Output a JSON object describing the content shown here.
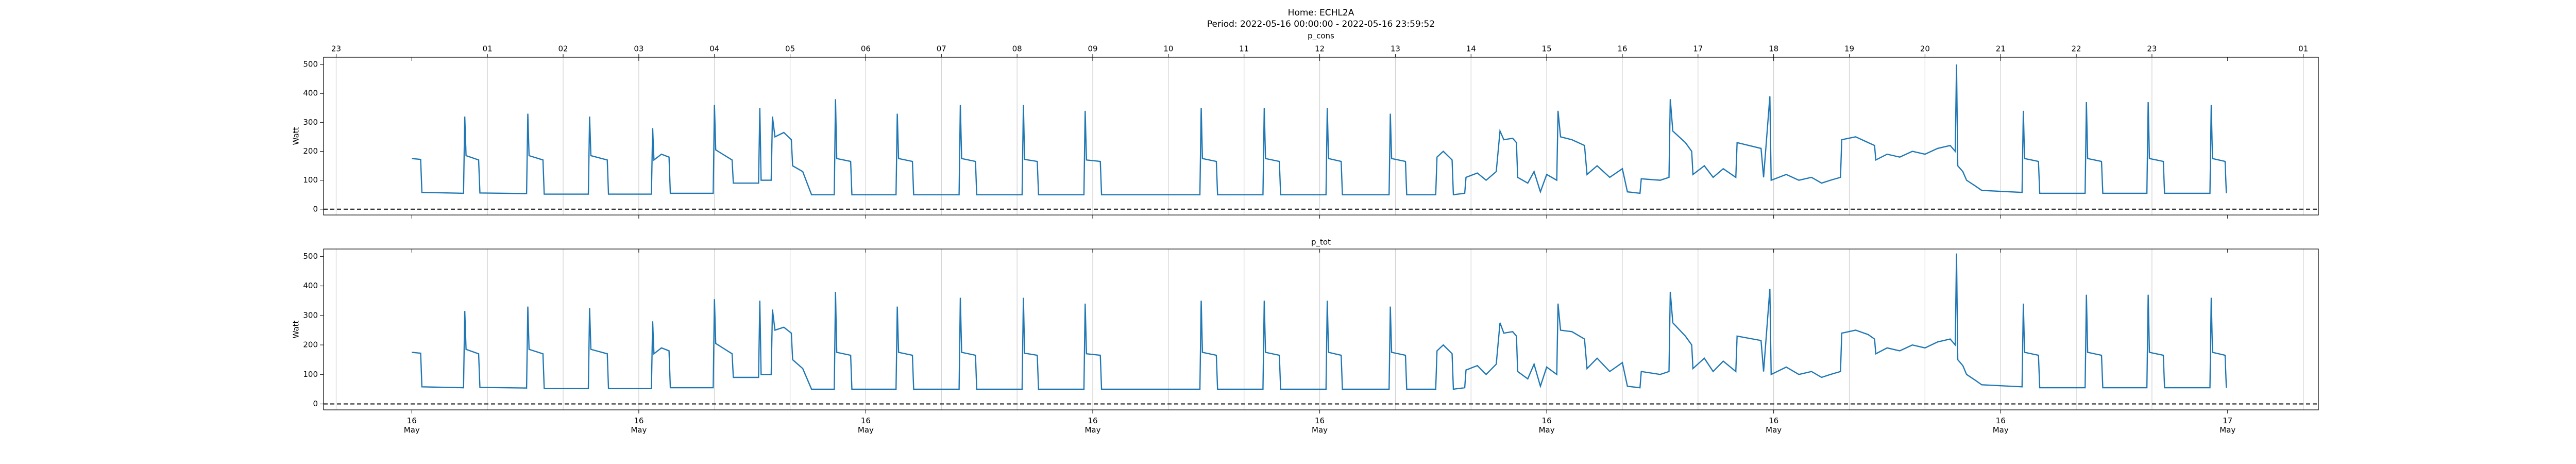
{
  "title": "Home: ECHL2A",
  "subtitle": "Period: 2022-05-16 00:00:00 - 2022-05-16 23:59:52",
  "chart_data": [
    {
      "type": "line",
      "title": "p_cons",
      "ylabel": "Watt",
      "xlim": [
        "2022-05-15 22:50",
        "2022-05-17 01:12"
      ],
      "ylim": [
        -20,
        525
      ],
      "yticks": [
        0,
        100,
        200,
        300,
        400,
        500
      ],
      "hline": 0,
      "grid": true,
      "x2ticks": [
        {
          "value": "2022-05-15 23:00",
          "label": "23"
        },
        {
          "value": "2022-05-16 01:00",
          "label": "01"
        },
        {
          "value": "2022-05-16 02:00",
          "label": "02"
        },
        {
          "value": "2022-05-16 03:00",
          "label": "03"
        },
        {
          "value": "2022-05-16 04:00",
          "label": "04"
        },
        {
          "value": "2022-05-16 05:00",
          "label": "05"
        },
        {
          "value": "2022-05-16 06:00",
          "label": "06"
        },
        {
          "value": "2022-05-16 07:00",
          "label": "07"
        },
        {
          "value": "2022-05-16 08:00",
          "label": "08"
        },
        {
          "value": "2022-05-16 09:00",
          "label": "09"
        },
        {
          "value": "2022-05-16 10:00",
          "label": "10"
        },
        {
          "value": "2022-05-16 11:00",
          "label": "11"
        },
        {
          "value": "2022-05-16 12:00",
          "label": "12"
        },
        {
          "value": "2022-05-16 13:00",
          "label": "13"
        },
        {
          "value": "2022-05-16 14:00",
          "label": "14"
        },
        {
          "value": "2022-05-16 15:00",
          "label": "15"
        },
        {
          "value": "2022-05-16 16:00",
          "label": "16"
        },
        {
          "value": "2022-05-16 17:00",
          "label": "17"
        },
        {
          "value": "2022-05-16 18:00",
          "label": "18"
        },
        {
          "value": "2022-05-16 19:00",
          "label": "19"
        },
        {
          "value": "2022-05-16 20:00",
          "label": "20"
        },
        {
          "value": "2022-05-16 21:00",
          "label": "21"
        },
        {
          "value": "2022-05-16 22:00",
          "label": "22"
        },
        {
          "value": "2022-05-16 23:00",
          "label": "23"
        },
        {
          "value": "2022-05-17 01:00",
          "label": "01"
        }
      ],
      "color": "#1f77b4",
      "x": [
        "2022-05-16 00:00",
        "2022-05-16 00:07",
        "2022-05-16 00:08",
        "2022-05-16 00:41",
        "2022-05-16 00:42",
        "2022-05-16 00:43",
        "2022-05-16 00:53",
        "2022-05-16 00:54",
        "2022-05-16 01:31",
        "2022-05-16 01:32",
        "2022-05-16 01:33",
        "2022-05-16 01:44",
        "2022-05-16 01:45",
        "2022-05-16 02:20",
        "2022-05-16 02:21",
        "2022-05-16 02:22",
        "2022-05-16 02:35",
        "2022-05-16 02:36",
        "2022-05-16 03:10",
        "2022-05-16 03:11",
        "2022-05-16 03:12",
        "2022-05-16 03:18",
        "2022-05-16 03:24",
        "2022-05-16 03:25",
        "2022-05-16 03:59",
        "2022-05-16 04:00",
        "2022-05-16 04:01",
        "2022-05-16 04:14",
        "2022-05-16 04:15",
        "2022-05-16 04:35",
        "2022-05-16 04:36",
        "2022-05-16 04:37",
        "2022-05-16 04:45",
        "2022-05-16 04:46",
        "2022-05-16 04:48",
        "2022-05-16 04:55",
        "2022-05-16 05:01",
        "2022-05-16 05:02",
        "2022-05-16 05:10",
        "2022-05-16 05:17",
        "2022-05-16 05:35",
        "2022-05-16 05:36",
        "2022-05-16 05:37",
        "2022-05-16 05:48",
        "2022-05-16 05:49",
        "2022-05-16 06:24",
        "2022-05-16 06:25",
        "2022-05-16 06:26",
        "2022-05-16 06:37",
        "2022-05-16 06:38",
        "2022-05-16 07:14",
        "2022-05-16 07:15",
        "2022-05-16 07:16",
        "2022-05-16 07:27",
        "2022-05-16 07:28",
        "2022-05-16 08:04",
        "2022-05-16 08:05",
        "2022-05-16 08:06",
        "2022-05-16 08:16",
        "2022-05-16 08:17",
        "2022-05-16 08:53",
        "2022-05-16 08:54",
        "2022-05-16 08:55",
        "2022-05-16 09:06",
        "2022-05-16 09:07",
        "2022-05-16 10:25",
        "2022-05-16 10:26",
        "2022-05-16 10:27",
        "2022-05-16 10:38",
        "2022-05-16 10:39",
        "2022-05-16 11:15",
        "2022-05-16 11:16",
        "2022-05-16 11:17",
        "2022-05-16 11:28",
        "2022-05-16 11:29",
        "2022-05-16 12:05",
        "2022-05-16 12:06",
        "2022-05-16 12:07",
        "2022-05-16 12:17",
        "2022-05-16 12:18",
        "2022-05-16 12:55",
        "2022-05-16 12:56",
        "2022-05-16 12:57",
        "2022-05-16 13:08",
        "2022-05-16 13:09",
        "2022-05-16 13:32",
        "2022-05-16 13:33",
        "2022-05-16 13:38",
        "2022-05-16 13:45",
        "2022-05-16 13:46",
        "2022-05-16 13:55",
        "2022-05-16 13:56",
        "2022-05-16 14:05",
        "2022-05-16 14:12",
        "2022-05-16 14:20",
        "2022-05-16 14:23",
        "2022-05-16 14:26",
        "2022-05-16 14:33",
        "2022-05-16 14:36",
        "2022-05-16 14:37",
        "2022-05-16 14:45",
        "2022-05-16 14:50",
        "2022-05-16 14:55",
        "2022-05-16 15:00",
        "2022-05-16 15:08",
        "2022-05-16 15:09",
        "2022-05-16 15:11",
        "2022-05-16 15:20",
        "2022-05-16 15:30",
        "2022-05-16 15:32",
        "2022-05-16 15:40",
        "2022-05-16 15:50",
        "2022-05-16 16:00",
        "2022-05-16 16:04",
        "2022-05-16 16:14",
        "2022-05-16 16:15",
        "2022-05-16 16:30",
        "2022-05-16 16:37",
        "2022-05-16 16:38",
        "2022-05-16 16:40",
        "2022-05-16 16:50",
        "2022-05-16 16:55",
        "2022-05-16 16:56",
        "2022-05-16 17:05",
        "2022-05-16 17:12",
        "2022-05-16 17:20",
        "2022-05-16 17:30",
        "2022-05-16 17:31",
        "2022-05-16 17:50",
        "2022-05-16 17:52",
        "2022-05-16 17:57",
        "2022-05-16 17:58",
        "2022-05-16 18:10",
        "2022-05-16 18:20",
        "2022-05-16 18:30",
        "2022-05-16 18:38",
        "2022-05-16 18:45",
        "2022-05-16 18:53",
        "2022-05-16 18:54",
        "2022-05-16 19:05",
        "2022-05-16 19:15",
        "2022-05-16 19:20",
        "2022-05-16 19:21",
        "2022-05-16 19:30",
        "2022-05-16 19:40",
        "2022-05-16 19:50",
        "2022-05-16 20:00",
        "2022-05-16 20:10",
        "2022-05-16 20:20",
        "2022-05-16 20:24",
        "2022-05-16 20:25",
        "2022-05-16 20:26",
        "2022-05-16 20:30",
        "2022-05-16 20:33",
        "2022-05-16 20:40",
        "2022-05-16 20:45",
        "2022-05-16 21:17",
        "2022-05-16 21:18",
        "2022-05-16 21:19",
        "2022-05-16 21:30",
        "2022-05-16 21:31",
        "2022-05-16 22:07",
        "2022-05-16 22:08",
        "2022-05-16 22:09",
        "2022-05-16 22:20",
        "2022-05-16 22:21",
        "2022-05-16 22:56",
        "2022-05-16 22:57",
        "2022-05-16 22:58",
        "2022-05-16 23:09",
        "2022-05-16 23:10",
        "2022-05-16 23:46",
        "2022-05-16 23:47",
        "2022-05-16 23:48",
        "2022-05-16 23:58",
        "2022-05-16 23:59"
      ],
      "values": [
        175,
        172,
        58,
        55,
        320,
        185,
        170,
        56,
        54,
        330,
        185,
        170,
        52,
        52,
        320,
        185,
        170,
        52,
        52,
        280,
        170,
        190,
        180,
        55,
        55,
        360,
        205,
        170,
        90,
        90,
        350,
        100,
        100,
        320,
        250,
        265,
        240,
        150,
        130,
        50,
        50,
        380,
        175,
        165,
        50,
        50,
        330,
        175,
        165,
        50,
        50,
        360,
        175,
        165,
        50,
        50,
        360,
        172,
        165,
        50,
        50,
        340,
        170,
        165,
        50,
        50,
        350,
        175,
        165,
        50,
        50,
        350,
        175,
        165,
        50,
        50,
        350,
        175,
        165,
        50,
        50,
        330,
        175,
        165,
        50,
        50,
        180,
        200,
        170,
        50,
        55,
        110,
        125,
        100,
        130,
        270,
        240,
        245,
        230,
        110,
        90,
        130,
        60,
        120,
        100,
        340,
        250,
        240,
        220,
        120,
        150,
        110,
        140,
        60,
        55,
        105,
        100,
        110,
        380,
        270,
        230,
        200,
        120,
        150,
        110,
        140,
        110,
        230,
        210,
        110,
        390,
        100,
        120,
        100,
        110,
        90,
        100,
        110,
        240,
        250,
        230,
        220,
        170,
        190,
        180,
        200,
        190,
        210,
        220,
        200,
        500,
        150,
        130,
        100,
        80,
        65,
        58,
        340,
        175,
        165,
        55,
        55,
        370,
        175,
        165,
        55,
        55,
        370,
        175,
        165,
        55,
        55,
        360,
        175,
        165,
        55
      ]
    },
    {
      "type": "line",
      "title": "p_tot",
      "ylabel": "Watt",
      "xlim": [
        "2022-05-15 22:50",
        "2022-05-17 01:12"
      ],
      "ylim": [
        -20,
        525
      ],
      "yticks": [
        0,
        100,
        200,
        300,
        400,
        500
      ],
      "hline": 0,
      "grid": true,
      "xticks": [
        {
          "value": "2022-05-16 00:00",
          "label": "16 May"
        },
        {
          "value": "2022-05-16 03:00",
          "label": "16 May"
        },
        {
          "value": "2022-05-16 06:00",
          "label": "16 May"
        },
        {
          "value": "2022-05-16 09:00",
          "label": "16 May"
        },
        {
          "value": "2022-05-16 12:00",
          "label": "16 May"
        },
        {
          "value": "2022-05-16 15:00",
          "label": "16 May"
        },
        {
          "value": "2022-05-16 18:00",
          "label": "16 May"
        },
        {
          "value": "2022-05-16 21:00",
          "label": "16 May"
        },
        {
          "value": "2022-05-17 00:00",
          "label": "17 May"
        }
      ],
      "color": "#1f77b4",
      "x": [
        "2022-05-16 00:00",
        "2022-05-16 00:07",
        "2022-05-16 00:08",
        "2022-05-16 00:41",
        "2022-05-16 00:42",
        "2022-05-16 00:43",
        "2022-05-16 00:53",
        "2022-05-16 00:54",
        "2022-05-16 01:31",
        "2022-05-16 01:32",
        "2022-05-16 01:33",
        "2022-05-16 01:44",
        "2022-05-16 01:45",
        "2022-05-16 02:20",
        "2022-05-16 02:21",
        "2022-05-16 02:22",
        "2022-05-16 02:35",
        "2022-05-16 02:36",
        "2022-05-16 03:10",
        "2022-05-16 03:11",
        "2022-05-16 03:12",
        "2022-05-16 03:18",
        "2022-05-16 03:24",
        "2022-05-16 03:25",
        "2022-05-16 03:59",
        "2022-05-16 04:00",
        "2022-05-16 04:01",
        "2022-05-16 04:14",
        "2022-05-16 04:15",
        "2022-05-16 04:35",
        "2022-05-16 04:36",
        "2022-05-16 04:37",
        "2022-05-16 04:45",
        "2022-05-16 04:46",
        "2022-05-16 04:48",
        "2022-05-16 04:55",
        "2022-05-16 05:01",
        "2022-05-16 05:02",
        "2022-05-16 05:10",
        "2022-05-16 05:17",
        "2022-05-16 05:35",
        "2022-05-16 05:36",
        "2022-05-16 05:37",
        "2022-05-16 05:48",
        "2022-05-16 05:49",
        "2022-05-16 06:24",
        "2022-05-16 06:25",
        "2022-05-16 06:26",
        "2022-05-16 06:37",
        "2022-05-16 06:38",
        "2022-05-16 07:14",
        "2022-05-16 07:15",
        "2022-05-16 07:16",
        "2022-05-16 07:27",
        "2022-05-16 07:28",
        "2022-05-16 08:04",
        "2022-05-16 08:05",
        "2022-05-16 08:06",
        "2022-05-16 08:16",
        "2022-05-16 08:17",
        "2022-05-16 08:53",
        "2022-05-16 08:54",
        "2022-05-16 08:55",
        "2022-05-16 09:06",
        "2022-05-16 09:07",
        "2022-05-16 10:25",
        "2022-05-16 10:26",
        "2022-05-16 10:27",
        "2022-05-16 10:38",
        "2022-05-16 10:39",
        "2022-05-16 11:15",
        "2022-05-16 11:16",
        "2022-05-16 11:17",
        "2022-05-16 11:28",
        "2022-05-16 11:29",
        "2022-05-16 12:05",
        "2022-05-16 12:06",
        "2022-05-16 12:07",
        "2022-05-16 12:17",
        "2022-05-16 12:18",
        "2022-05-16 12:55",
        "2022-05-16 12:56",
        "2022-05-16 12:57",
        "2022-05-16 13:08",
        "2022-05-16 13:09",
        "2022-05-16 13:32",
        "2022-05-16 13:33",
        "2022-05-16 13:38",
        "2022-05-16 13:45",
        "2022-05-16 13:46",
        "2022-05-16 13:55",
        "2022-05-16 13:56",
        "2022-05-16 14:05",
        "2022-05-16 14:12",
        "2022-05-16 14:20",
        "2022-05-16 14:23",
        "2022-05-16 14:26",
        "2022-05-16 14:33",
        "2022-05-16 14:36",
        "2022-05-16 14:37",
        "2022-05-16 14:45",
        "2022-05-16 14:50",
        "2022-05-16 14:55",
        "2022-05-16 15:00",
        "2022-05-16 15:08",
        "2022-05-16 15:09",
        "2022-05-16 15:11",
        "2022-05-16 15:20",
        "2022-05-16 15:30",
        "2022-05-16 15:32",
        "2022-05-16 15:40",
        "2022-05-16 15:50",
        "2022-05-16 16:00",
        "2022-05-16 16:04",
        "2022-05-16 16:14",
        "2022-05-16 16:15",
        "2022-05-16 16:30",
        "2022-05-16 16:37",
        "2022-05-16 16:38",
        "2022-05-16 16:40",
        "2022-05-16 16:50",
        "2022-05-16 16:55",
        "2022-05-16 16:56",
        "2022-05-16 17:05",
        "2022-05-16 17:12",
        "2022-05-16 17:20",
        "2022-05-16 17:30",
        "2022-05-16 17:31",
        "2022-05-16 17:50",
        "2022-05-16 17:52",
        "2022-05-16 17:57",
        "2022-05-16 17:58",
        "2022-05-16 18:10",
        "2022-05-16 18:20",
        "2022-05-16 18:30",
        "2022-05-16 18:38",
        "2022-05-16 18:45",
        "2022-05-16 18:53",
        "2022-05-16 18:54",
        "2022-05-16 19:05",
        "2022-05-16 19:15",
        "2022-05-16 19:20",
        "2022-05-16 19:21",
        "2022-05-16 19:30",
        "2022-05-16 19:40",
        "2022-05-16 19:50",
        "2022-05-16 20:00",
        "2022-05-16 20:10",
        "2022-05-16 20:20",
        "2022-05-16 20:24",
        "2022-05-16 20:25",
        "2022-05-16 20:26",
        "2022-05-16 20:30",
        "2022-05-16 20:33",
        "2022-05-16 20:40",
        "2022-05-16 20:45",
        "2022-05-16 21:17",
        "2022-05-16 21:18",
        "2022-05-16 21:19",
        "2022-05-16 21:30",
        "2022-05-16 21:31",
        "2022-05-16 22:07",
        "2022-05-16 22:08",
        "2022-05-16 22:09",
        "2022-05-16 22:20",
        "2022-05-16 22:21",
        "2022-05-16 22:56",
        "2022-05-16 22:57",
        "2022-05-16 22:58",
        "2022-05-16 23:09",
        "2022-05-16 23:10",
        "2022-05-16 23:46",
        "2022-05-16 23:47",
        "2022-05-16 23:48",
        "2022-05-16 23:58",
        "2022-05-16 23:59"
      ],
      "values": [
        175,
        172,
        58,
        55,
        315,
        185,
        170,
        56,
        54,
        330,
        185,
        170,
        52,
        52,
        325,
        185,
        170,
        52,
        52,
        280,
        170,
        190,
        180,
        55,
        55,
        355,
        205,
        170,
        90,
        90,
        350,
        100,
        100,
        320,
        250,
        260,
        240,
        150,
        120,
        50,
        50,
        380,
        175,
        165,
        50,
        50,
        330,
        175,
        165,
        50,
        50,
        360,
        175,
        165,
        50,
        50,
        360,
        172,
        165,
        50,
        50,
        340,
        170,
        165,
        50,
        50,
        350,
        175,
        165,
        50,
        50,
        350,
        175,
        165,
        50,
        50,
        350,
        175,
        165,
        50,
        50,
        330,
        175,
        165,
        50,
        50,
        180,
        200,
        170,
        50,
        55,
        115,
        130,
        100,
        135,
        275,
        240,
        245,
        230,
        110,
        85,
        135,
        60,
        125,
        100,
        340,
        250,
        245,
        220,
        120,
        155,
        110,
        140,
        60,
        55,
        110,
        100,
        110,
        380,
        275,
        230,
        200,
        120,
        155,
        110,
        145,
        110,
        230,
        215,
        110,
        390,
        100,
        125,
        100,
        110,
        90,
        100,
        110,
        240,
        250,
        235,
        220,
        170,
        190,
        180,
        200,
        190,
        210,
        220,
        200,
        510,
        150,
        130,
        100,
        80,
        65,
        58,
        340,
        175,
        165,
        55,
        55,
        370,
        175,
        165,
        55,
        55,
        370,
        175,
        165,
        55,
        55,
        360,
        175,
        165,
        55
      ]
    }
  ]
}
